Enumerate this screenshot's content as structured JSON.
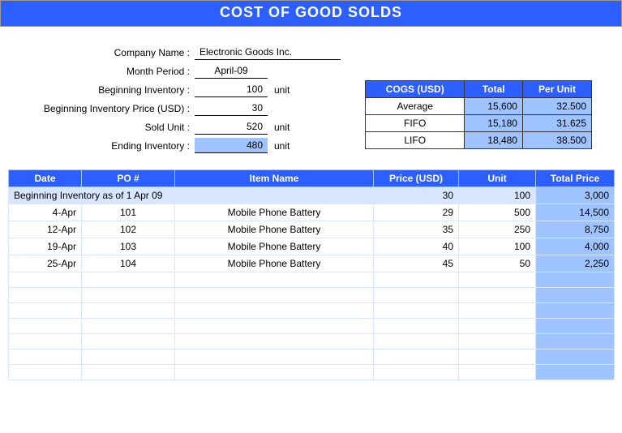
{
  "title": "COST OF GOOD SOLDS",
  "form": {
    "company_label": "Company Name :",
    "company_value": "Electronic Goods Inc.",
    "month_label": "Month Period :",
    "month_value": "April-09",
    "beg_inv_label": "Beginning Inventory :",
    "beg_inv_value": "100",
    "beg_inv_unit": "unit",
    "beg_price_label": "Beginning Inventory Price (USD) :",
    "beg_price_value": "30",
    "sold_label": "Sold Unit :",
    "sold_value": "520",
    "sold_unit": "unit",
    "end_inv_label": "Ending Inventory :",
    "end_inv_value": "480",
    "end_inv_unit": "unit"
  },
  "cogs": {
    "header_cogs": "COGS (USD)",
    "header_total": "Total",
    "header_perunit": "Per Unit",
    "rows": [
      {
        "method": "Average",
        "total": "15,600",
        "perunit": "32.500"
      },
      {
        "method": "FIFO",
        "total": "15,180",
        "perunit": "31.625"
      },
      {
        "method": "LIFO",
        "total": "18,480",
        "perunit": "38.500"
      }
    ]
  },
  "main": {
    "headers": {
      "date": "Date",
      "po": "PO #",
      "item": "Item Name",
      "price": "Price (USD)",
      "unit": "Unit",
      "total": "Total Price"
    },
    "begin_row": {
      "label": "Beginning Inventory as of  1 Apr 09",
      "price": "30",
      "unit": "100",
      "total": "3,000"
    },
    "rows": [
      {
        "date": "4-Apr",
        "po": "101",
        "item": "Mobile Phone Battery",
        "price": "29",
        "unit": "500",
        "total": "14,500"
      },
      {
        "date": "12-Apr",
        "po": "102",
        "item": "Mobile Phone Battery",
        "price": "35",
        "unit": "250",
        "total": "8,750"
      },
      {
        "date": "19-Apr",
        "po": "103",
        "item": "Mobile Phone Battery",
        "price": "40",
        "unit": "100",
        "total": "4,000"
      },
      {
        "date": "25-Apr",
        "po": "104",
        "item": "Mobile Phone Battery",
        "price": "45",
        "unit": "50",
        "total": "2,250"
      }
    ],
    "empty_rows": 7
  },
  "colors": {
    "primary": "#2d5fff",
    "highlight": "#9ec3ff",
    "row_alt": "#d8e6ff"
  }
}
